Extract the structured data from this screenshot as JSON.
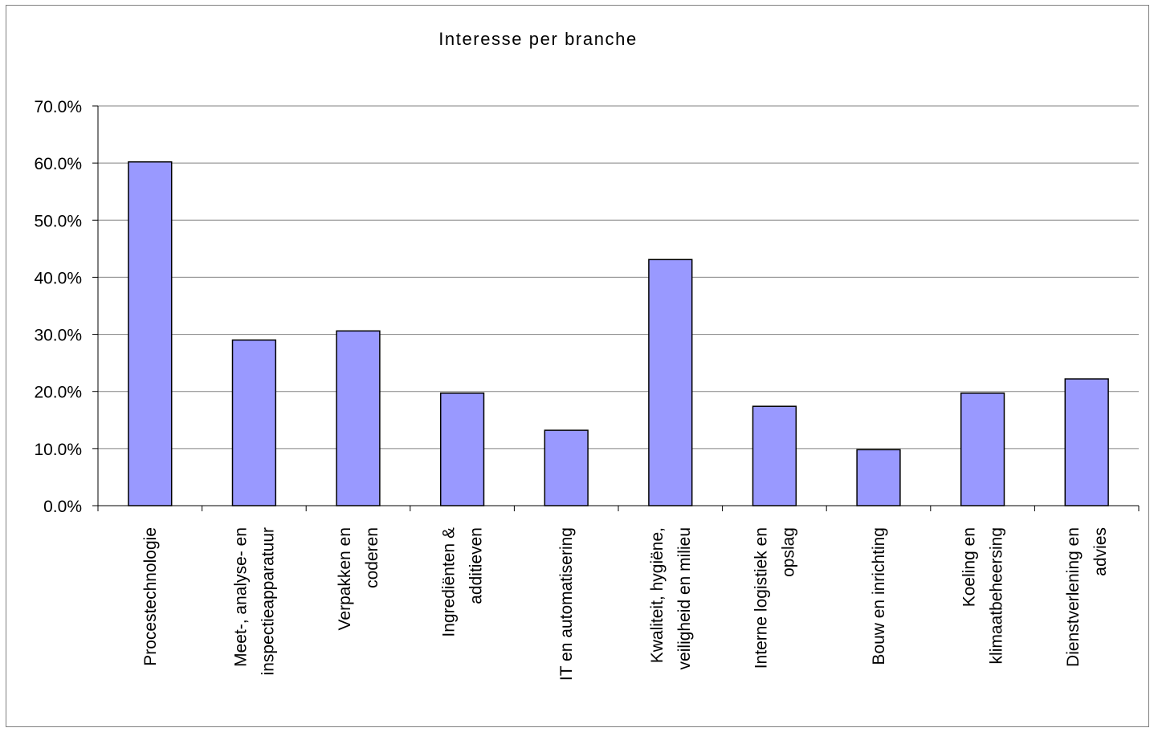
{
  "chart_data": {
    "type": "bar",
    "title": "Interesse per branche",
    "xlabel": "",
    "ylabel": "",
    "ylim": [
      0,
      0.7
    ],
    "yticks": [
      "0.0%",
      "10.0%",
      "20.0%",
      "30.0%",
      "40.0%",
      "50.0%",
      "60.0%",
      "70.0%"
    ],
    "ytick_values": [
      0,
      0.1,
      0.2,
      0.3,
      0.4,
      0.5,
      0.6,
      0.7
    ],
    "grid": true,
    "legend": "none",
    "bar_color": "#9999ff",
    "categories": [
      [
        "Procestechnologie"
      ],
      [
        "Meet-, analyse- en",
        "inspectieapparatuur"
      ],
      [
        "Verpakken en",
        "coderen"
      ],
      [
        "Ingrediënten &",
        "additieven"
      ],
      [
        "IT en automatisering"
      ],
      [
        "Kwaliteit, hygiëne,",
        "veiligheid en milieu"
      ],
      [
        "Interne logistiek en",
        "opslag"
      ],
      [
        "Bouw en inrichting"
      ],
      [
        "Koeling en",
        "klimaatbeheersing"
      ],
      [
        "Dienstverlening en",
        "advies"
      ]
    ],
    "values": [
      0.602,
      0.29,
      0.306,
      0.197,
      0.132,
      0.431,
      0.174,
      0.098,
      0.197,
      0.222
    ]
  }
}
